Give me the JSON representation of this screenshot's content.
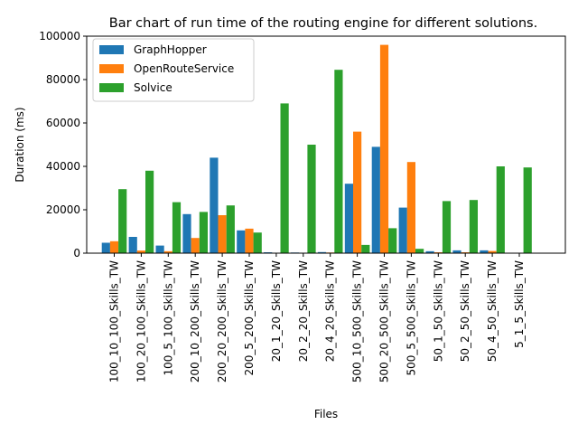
{
  "chart_data": {
    "type": "bar",
    "title": "Bar chart of run time of the routing engine for different solutions.",
    "xlabel": "Files",
    "ylabel": "Duration (ms)",
    "ylim": [
      0,
      100000
    ],
    "yticks": [
      0,
      20000,
      40000,
      60000,
      80000,
      100000
    ],
    "legend_position": "top-left",
    "grid": false,
    "categories": [
      "100_10_100_Skills_TW",
      "100_20_100_Skills_TW",
      "100_5_100_Skills_TW",
      "200_10_200_Skills_TW",
      "200_20_200_Skills_TW",
      "200_5_200_Skills_TW",
      "20_1_20_Skills_TW",
      "20_2_20_Skills_TW",
      "20_4_20_Skills_TW",
      "500_10_500_Skills_TW",
      "500_20_500_Skills_TW",
      "500_5_500_Skills_TW",
      "50_1_50_Skills_TW",
      "50_2_50_Skills_TW",
      "50_4_50_Skills_TW",
      "5_1_5_Skills_TW"
    ],
    "series": [
      {
        "name": "GraphHopper",
        "color": "#1f77b4",
        "values": [
          4800,
          7500,
          3500,
          18000,
          44000,
          10500,
          400,
          300,
          500,
          32000,
          49000,
          21000,
          900,
          1300,
          1300,
          100
        ]
      },
      {
        "name": "OpenRouteService",
        "color": "#ff7f0e",
        "values": [
          5500,
          1200,
          900,
          7000,
          17500,
          11300,
          200,
          200,
          300,
          56000,
          96000,
          42000,
          400,
          400,
          1000,
          100
        ]
      },
      {
        "name": "Solvice",
        "color": "#2ca02c",
        "values": [
          29500,
          38000,
          23500,
          19000,
          22000,
          9500,
          69000,
          50000,
          84500,
          3800,
          11500,
          2000,
          24000,
          24500,
          40000,
          39500
        ]
      }
    ]
  }
}
